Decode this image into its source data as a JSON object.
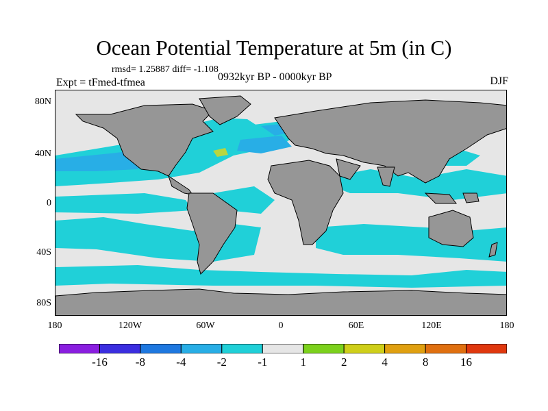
{
  "title": "Ocean Potential Temperature at 5m (in C)",
  "stats_line": "rmsd= 1.25887  diff= -1.108",
  "experiment_label": "Expt = tFmed-tfmea",
  "period_label": "0932kyr BP - 0000kyr BP",
  "season_label": "DJF",
  "y_axis_ticks": [
    "80N",
    "40N",
    "0",
    "40S",
    "80S"
  ],
  "x_axis_ticks": [
    "180",
    "120W",
    "60W",
    "0",
    "60E",
    "120E",
    "180"
  ],
  "legend": {
    "labels": [
      "-16",
      "-8",
      "-4",
      "-2",
      "-1",
      "1",
      "2",
      "4",
      "8",
      "16"
    ],
    "colors": [
      "#8a1ee0",
      "#3b2ee0",
      "#1e78e0",
      "#28aee6",
      "#20d0d8",
      "#e6e6e6",
      "#7cd11c",
      "#cfcf1a",
      "#e0a010",
      "#e07010",
      "#e0380e"
    ]
  },
  "colors": {
    "land": "#969696",
    "cool": "#20d0d8",
    "cold": "#28aee6",
    "neutral": "#e6e6e6",
    "warm": "#b8d640"
  }
}
